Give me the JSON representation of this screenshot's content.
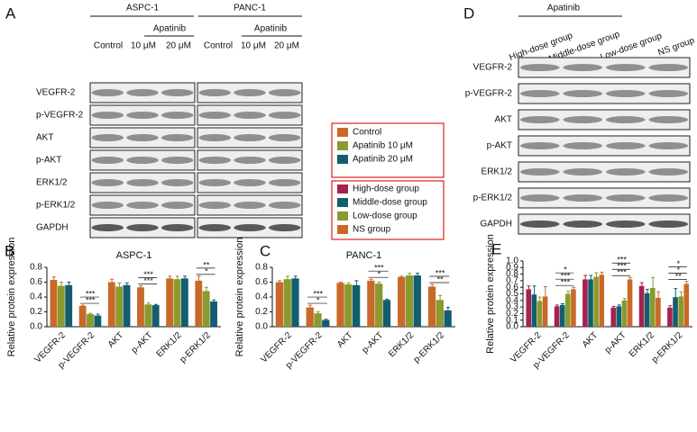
{
  "panel_a": {
    "letter": "A",
    "cell_lines": [
      "ASPC-1",
      "PANC-1"
    ],
    "treatment": [
      "Apatinib",
      "Apatinib"
    ],
    "lanes": [
      "Control",
      "10 μM",
      "20 μM",
      "Control",
      "10 μM",
      "20 μM"
    ],
    "rows": [
      "VEGFR-2",
      "p-VEGFR-2",
      "AKT",
      "p-AKT",
      "ERK1/2",
      "p-ERK1/2",
      "GAPDH"
    ]
  },
  "panel_d": {
    "letter": "D",
    "treatment": "Apatinib",
    "lanes": [
      "High-dose group",
      "Middle-dose group",
      "Low-dose group",
      "NS group"
    ],
    "rows": [
      "VEGFR-2",
      "p-VEGFR-2",
      "AKT",
      "p-AKT",
      "ERK1/2",
      "p-ERK1/2",
      "GAPDH"
    ]
  },
  "chart_data": [
    {
      "panel": "B",
      "type": "bar",
      "title": "ASPC-1",
      "ylabel": "Relative protein expression",
      "legend": true,
      "categories": [
        "VEGFR-2",
        "p-VEGFR-2",
        "AKT",
        "p-AKT",
        "ERK1/2",
        "p-ERK1/2"
      ],
      "series": [
        {
          "name": "Control",
          "color": "#c8692a",
          "values": [
            0.63,
            0.28,
            0.6,
            0.53,
            0.65,
            0.62
          ],
          "errors": [
            0.04,
            0.01,
            0.04,
            0.02,
            0.03,
            0.06
          ]
        },
        {
          "name": "Apatinib 10 μM",
          "color": "#8b9a2e",
          "values": [
            0.55,
            0.17,
            0.54,
            0.3,
            0.64,
            0.48
          ],
          "errors": [
            0.05,
            0.01,
            0.05,
            0.02,
            0.04,
            0.05
          ]
        },
        {
          "name": "Apatinib 20 μM",
          "color": "#135e6e",
          "values": [
            0.56,
            0.15,
            0.56,
            0.29,
            0.65,
            0.34
          ],
          "errors": [
            0.04,
            0.02,
            0.03,
            0.01,
            0.03,
            0.02
          ]
        }
      ],
      "ylim": [
        0,
        0.8
      ],
      "yticks": [
        {
          "value": 0,
          "label": "0.0"
        },
        0.2,
        0.4,
        0.6,
        0.8
      ],
      "annotations": [
        "***",
        "***",
        "***",
        "***",
        "*",
        "**"
      ]
    },
    {
      "panel": "C",
      "type": "bar",
      "title": "PANC-1",
      "ylabel": "Relative protein expression",
      "categories": [
        "VEGFR-2",
        "p-VEGFR-2",
        "AKT",
        "p-AKT",
        "ERK1/2",
        "p-ERK1/2"
      ],
      "series": [
        {
          "color": "#c8692a",
          "values": [
            0.6,
            0.26,
            0.59,
            0.62,
            0.67,
            0.54
          ],
          "errors": [
            0.02,
            0.03,
            0.01,
            0.02,
            0.01,
            0.03
          ]
        },
        {
          "color": "#8b9a2e",
          "values": [
            0.64,
            0.18,
            0.57,
            0.58,
            0.69,
            0.36
          ],
          "errors": [
            0.04,
            0.02,
            0.02,
            0.02,
            0.03,
            0.06
          ]
        },
        {
          "color": "#135e6e",
          "values": [
            0.65,
            0.09,
            0.56,
            0.36,
            0.69,
            0.22
          ],
          "errors": [
            0.03,
            0.01,
            0.06,
            0.01,
            0.03,
            0.04
          ]
        }
      ],
      "ylim": [
        0,
        0.8
      ],
      "yticks": [
        {
          "value": 0,
          "label": "0.0"
        },
        0.2,
        0.4,
        0.6,
        0.8
      ],
      "annotations": [
        "*",
        "***",
        "*",
        "***",
        "**",
        "***"
      ]
    },
    {
      "panel": "E",
      "type": "bar",
      "ylabel": "Relative protein expression",
      "legend": true,
      "categories": [
        "VEGFR-2",
        "p-VEGFR-2",
        "AKT",
        "p-AKT",
        "ERK1/2",
        "p-ERK1/2"
      ],
      "series": [
        {
          "name": "High-dose group",
          "color": "#a3224f",
          "values": [
            0.57,
            0.31,
            0.72,
            0.29,
            0.62,
            0.29
          ],
          "errors": [
            0.05,
            0.02,
            0.06,
            0.02,
            0.05,
            0.03
          ]
        },
        {
          "name": "Middle-dose group",
          "color": "#135e6e",
          "values": [
            0.49,
            0.33,
            0.72,
            0.31,
            0.51,
            0.45
          ],
          "errors": [
            0.13,
            0.02,
            0.06,
            0.02,
            0.06,
            0.13
          ]
        },
        {
          "name": "Low-dose group",
          "color": "#8b9a2e",
          "values": [
            0.39,
            0.5,
            0.76,
            0.4,
            0.59,
            0.46
          ],
          "errors": [
            0.06,
            0.04,
            0.06,
            0.03,
            0.16,
            0.07
          ]
        },
        {
          "name": "NS group",
          "color": "#c8692a",
          "values": [
            0.46,
            0.57,
            0.79,
            0.72,
            0.44,
            0.65
          ],
          "errors": [
            0.15,
            0.03,
            0.04,
            0.03,
            0.09,
            0.04
          ]
        }
      ],
      "ylim": [
        0,
        1.0
      ],
      "yticks": [
        {
          "value": 0,
          "label": "0.0"
        },
        0.1,
        0.2,
        0.3,
        0.4,
        0.5,
        0.6,
        0.7,
        0.8,
        0.9,
        {
          "value": 1,
          "label": "1.0"
        }
      ],
      "annotations": [
        "***",
        "***",
        "*",
        "***",
        "***",
        "***",
        "**",
        "*",
        "*"
      ]
    }
  ]
}
